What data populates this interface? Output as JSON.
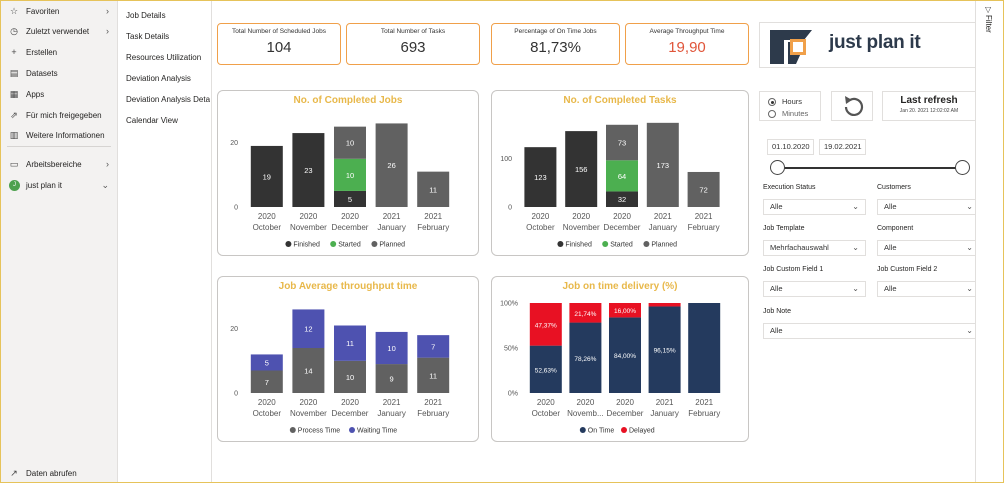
{
  "nav": {
    "items": [
      {
        "icon": "star-icon",
        "glyph": "☆",
        "label": "Favoriten",
        "chevron": "›"
      },
      {
        "icon": "clock-icon",
        "glyph": "◷",
        "label": "Zuletzt verwendet",
        "chevron": "›"
      },
      {
        "icon": "plus-icon",
        "glyph": "+",
        "label": "Erstellen"
      },
      {
        "icon": "database-icon",
        "glyph": "▤",
        "label": "Datasets"
      },
      {
        "icon": "apps-icon",
        "glyph": "▦",
        "label": "Apps"
      },
      {
        "icon": "share-icon",
        "glyph": "⇗",
        "label": "Für mich freigegeben"
      },
      {
        "icon": "book-icon",
        "glyph": "▥",
        "label": "Weitere Informationen"
      },
      {
        "icon": "workspace-icon",
        "glyph": "▭",
        "label": "Arbeitsbereiche",
        "chevron": "›"
      },
      {
        "icon": "workspace-avatar",
        "glyph": "J",
        "label": "just plan it",
        "chevron": "⌄"
      }
    ],
    "bottom": {
      "icon": "arrow-up-right-icon",
      "glyph": "↗",
      "label": "Daten abrufen"
    }
  },
  "pages": [
    "Job Details",
    "Task Details",
    "Resources Utilization",
    "Deviation Analysis",
    "Deviation Analysis Deta...",
    "Calendar View"
  ],
  "filter_pane": {
    "label": "Filter",
    "glyph": "▽"
  },
  "kpis": [
    {
      "title": "Total Number of Scheduled Jobs",
      "value": "104",
      "color": "#333333"
    },
    {
      "title": "Total Number of Tasks",
      "value": "693",
      "color": "#333333"
    },
    {
      "title": "Percentage of On Time Jobs",
      "value": "81,73%",
      "color": "#333333"
    },
    {
      "title": "Average Throughput Time",
      "value": "19,90",
      "color": "#e0553a"
    }
  ],
  "logo": {
    "text": "just plan it"
  },
  "units": {
    "options": [
      "Hours",
      "Minutes"
    ],
    "selected": "Hours"
  },
  "refresh": {
    "glyph": "↻"
  },
  "last_refresh": {
    "label": "Last refresh",
    "value": "Jan 20. 2021 12:02:02 AM"
  },
  "date_range": {
    "start": "01.10.2020",
    "end": "19.02.2021",
    "slider_start": 0.0,
    "slider_end": 1.0
  },
  "filters": [
    {
      "label": "Execution Status",
      "value": "Alle"
    },
    {
      "label": "Customers",
      "value": "Alle"
    },
    {
      "label": "Job Template",
      "value": "Mehrfachauswahl"
    },
    {
      "label": "Component",
      "value": "Alle"
    },
    {
      "label": "Job Custom Field 1",
      "value": "Alle"
    },
    {
      "label": "Job Custom Field 2",
      "value": "Alle"
    },
    {
      "label": "Job Note",
      "value": "Alle"
    }
  ],
  "chart_data": [
    {
      "type": "bar",
      "stacked": true,
      "title": "No. of Completed Jobs",
      "categories": [
        [
          "2020",
          "October"
        ],
        [
          "2020",
          "November"
        ],
        [
          "2020",
          "December"
        ],
        [
          "2021",
          "January"
        ],
        [
          "2021",
          "February"
        ]
      ],
      "yticks": [
        "0",
        "20"
      ],
      "ylim": [
        0,
        28
      ],
      "series": [
        {
          "name": "Finished",
          "color": "#333333",
          "values": [
            19,
            23,
            5,
            0,
            0
          ],
          "labels": [
            "19",
            "23",
            "5",
            "",
            ""
          ]
        },
        {
          "name": "Started",
          "color": "#4caf50",
          "values": [
            0,
            0,
            10,
            0,
            0
          ],
          "labels": [
            "",
            "",
            "10",
            "",
            ""
          ]
        },
        {
          "name": "Planned",
          "color": "#616161",
          "values": [
            0,
            0,
            10,
            26,
            11
          ],
          "labels": [
            "",
            "",
            "10",
            "26",
            "11"
          ]
        }
      ]
    },
    {
      "type": "bar",
      "stacked": true,
      "title": "No. of Completed Tasks",
      "categories": [
        [
          "2020",
          "October"
        ],
        [
          "2020",
          "November"
        ],
        [
          "2020",
          "December"
        ],
        [
          "2021",
          "January"
        ],
        [
          "2021",
          "February"
        ]
      ],
      "yticks": [
        "0",
        "100"
      ],
      "ylim": [
        0,
        185
      ],
      "series": [
        {
          "name": "Finished",
          "color": "#333333",
          "values": [
            123,
            156,
            32,
            0,
            0
          ],
          "labels": [
            "123",
            "156",
            "32",
            "",
            ""
          ]
        },
        {
          "name": "Started",
          "color": "#4caf50",
          "values": [
            0,
            0,
            64,
            0,
            0
          ],
          "labels": [
            "",
            "",
            "64",
            "",
            ""
          ]
        },
        {
          "name": "Planned",
          "color": "#616161",
          "values": [
            0,
            0,
            73,
            173,
            72
          ],
          "labels": [
            "",
            "",
            "73",
            "173",
            "72"
          ]
        }
      ]
    },
    {
      "type": "bar",
      "stacked": true,
      "title": "Job Average throughput time",
      "categories": [
        [
          "2020",
          "October"
        ],
        [
          "2020",
          "November"
        ],
        [
          "2020",
          "December"
        ],
        [
          "2021",
          "January"
        ],
        [
          "2021",
          "February"
        ]
      ],
      "yticks": [
        "0",
        "20"
      ],
      "ylim": [
        0,
        28
      ],
      "series": [
        {
          "name": "Process Time",
          "color": "#616161",
          "values": [
            7,
            14,
            10,
            9,
            11
          ],
          "labels": [
            "7",
            "14",
            "10",
            "9",
            "11"
          ]
        },
        {
          "name": "Waiting Time",
          "color": "#4e52b0",
          "values": [
            5,
            12,
            11,
            10,
            7
          ],
          "labels": [
            "5",
            "12",
            "11",
            "10",
            "7"
          ]
        }
      ]
    },
    {
      "type": "bar",
      "stacked": true,
      "title": "Job on time delivery (%)",
      "categories": [
        [
          "2020",
          "October"
        ],
        [
          "2020",
          "Novemb..."
        ],
        [
          "2020",
          "December"
        ],
        [
          "2021",
          "January"
        ],
        [
          "2021",
          "February"
        ]
      ],
      "yticks": [
        "0%",
        "50%",
        "100%"
      ],
      "ylim": [
        0,
        100
      ],
      "series": [
        {
          "name": "On Time",
          "color": "#243a5e",
          "values": [
            52.63,
            78.26,
            84.0,
            96.15,
            100
          ],
          "labels": [
            "52,63%",
            "78,26%",
            "84,00%",
            "96,15%",
            ""
          ]
        },
        {
          "name": "Delayed",
          "color": "#e81123",
          "values": [
            47.37,
            21.74,
            16.0,
            3.85,
            0
          ],
          "labels": [
            "47,37%",
            "21,74%",
            "16,00%",
            "",
            ""
          ]
        }
      ]
    }
  ]
}
